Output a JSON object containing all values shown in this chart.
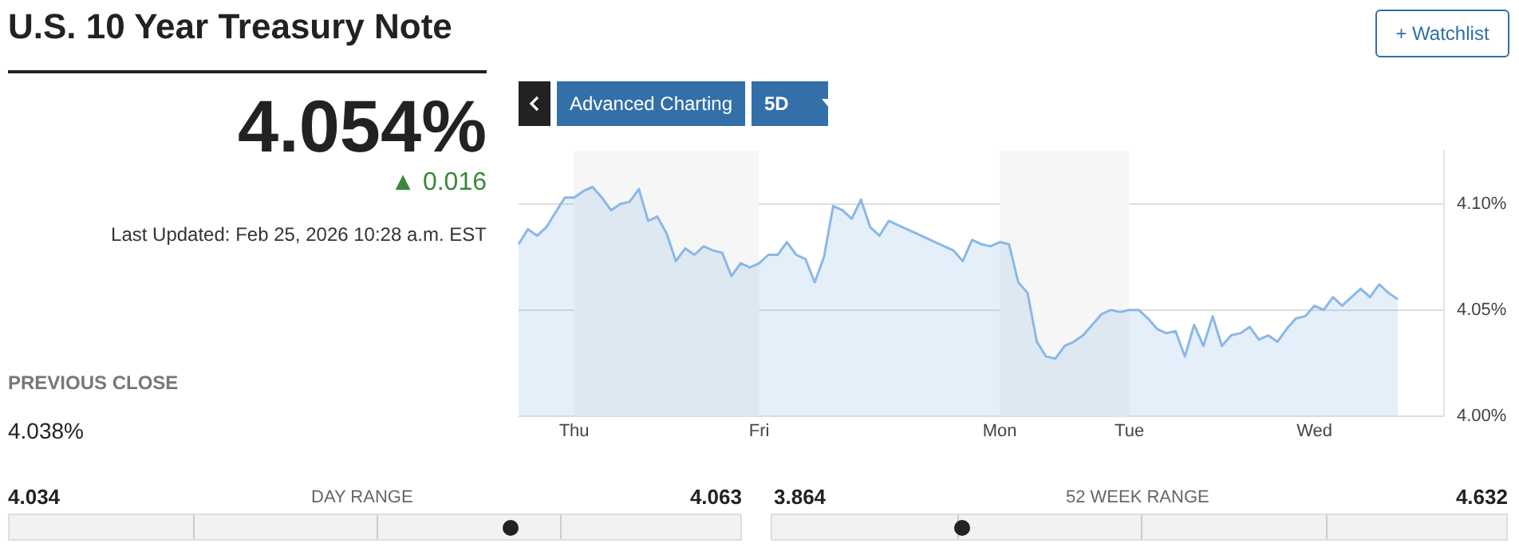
{
  "chart_data": {
    "type": "area",
    "title": "U.S. 10 Year Treasury Note",
    "annotations": [
      "4.054%",
      "▲ 0.016",
      "Last Updated: Feb 25, 2026 10:28 a.m. EST",
      "PREVIOUS CLOSE",
      "4.038%",
      "4.034",
      "DAY RANGE",
      "4.063",
      "3.864",
      "52 WEEK RANGE",
      "4.632",
      "+ Watchlist",
      "Advanced Charting",
      "5D"
    ],
    "categories": [
      null,
      null,
      null,
      null,
      null,
      null,
      "Thu",
      null,
      null,
      null,
      null,
      null,
      null,
      null,
      null,
      null,
      null,
      null,
      null,
      null,
      null,
      null,
      null,
      null,
      null,
      null,
      "Fri",
      null,
      null,
      null,
      null,
      null,
      null,
      null,
      null,
      null,
      null,
      null,
      null,
      null,
      null,
      null,
      null,
      null,
      null,
      null,
      null,
      null,
      null,
      null,
      null,
      null,
      "Mon",
      null,
      null,
      null,
      null,
      null,
      null,
      null,
      null,
      null,
      null,
      null,
      null,
      null,
      "Tue",
      null,
      null,
      null,
      null,
      null,
      null,
      null,
      null,
      null,
      null,
      null,
      null,
      null,
      null,
      null,
      null,
      null,
      null,
      null,
      "Wed",
      null,
      null,
      null,
      null,
      null,
      null,
      null,
      null,
      null,
      null,
      null,
      null,
      null,
      null
    ],
    "ylim": [
      4.0,
      4.125
    ],
    "yticks": [
      {
        "value": 4.0,
        "label": "4.00%"
      },
      {
        "value": 4.05,
        "label": "4.05%"
      },
      {
        "value": 4.1,
        "label": "4.10%"
      }
    ],
    "grid": "y",
    "legend": false,
    "marker": "none",
    "line_style": "solid",
    "bands": [
      {
        "axis": "x",
        "from": "Thu",
        "to": "Fri",
        "color": "#f6f6f6"
      },
      {
        "axis": "x",
        "from": "Mon",
        "to": "Tue",
        "color": "#f6f6f6"
      }
    ],
    "series": [
      {
        "color": "#8ab8e6",
        "values": [
          4.081,
          4.088,
          4.085,
          4.089,
          4.096,
          4.103,
          4.103,
          4.106,
          4.108,
          4.103,
          4.097,
          4.1,
          4.101,
          4.107,
          4.092,
          4.094,
          4.086,
          4.073,
          4.079,
          4.076,
          4.08,
          4.078,
          4.077,
          4.066,
          4.072,
          4.07,
          4.072,
          4.076,
          4.076,
          4.082,
          4.076,
          4.074,
          4.063,
          4.075,
          4.099,
          4.097,
          4.093,
          4.102,
          4.089,
          4.085,
          4.092,
          4.09,
          4.088,
          4.086,
          4.084,
          4.082,
          4.08,
          4.078,
          4.073,
          4.083,
          4.081,
          4.08,
          4.082,
          4.081,
          4.063,
          4.058,
          4.035,
          4.028,
          4.027,
          4.033,
          4.035,
          4.038,
          4.043,
          4.048,
          4.05,
          4.049,
          4.05,
          4.05,
          4.046,
          4.041,
          4.039,
          4.04,
          4.028,
          4.043,
          4.033,
          4.047,
          4.033,
          4.038,
          4.039,
          4.042,
          4.036,
          4.038,
          4.035,
          4.041,
          4.046,
          4.047,
          4.052,
          4.05,
          4.056,
          4.052,
          4.056,
          4.06,
          4.056,
          4.062,
          4.058,
          4.055,
          null,
          null,
          null,
          null,
          null
        ]
      }
    ]
  }
}
